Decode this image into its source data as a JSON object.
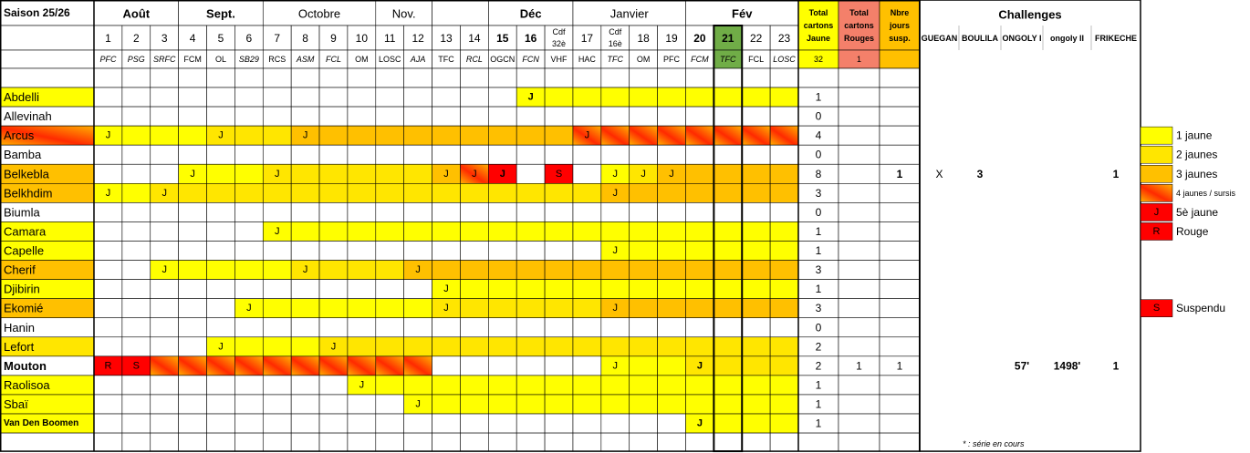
{
  "table": {
    "season": "Saison 25/26",
    "months": [
      {
        "label": "Août",
        "bold": true
      },
      {
        "label": "Sept.",
        "bold": true
      },
      {
        "label": "Octobre"
      },
      {
        "label": "Nov."
      },
      {
        "label": "Déc",
        "bold": true
      },
      {
        "label": "Janvier"
      },
      {
        "label": "Fév",
        "bold": true
      }
    ],
    "columns": [
      {
        "label": [
          "1"
        ],
        "opponent": "PFC",
        "color": "#00b050",
        "italic": true
      },
      {
        "label": [
          "2"
        ],
        "opponent": "PSG",
        "color": "#ff0000",
        "italic": true
      },
      {
        "label": [
          "3"
        ],
        "opponent": "SRFC",
        "color": "#000000",
        "italic": true
      },
      {
        "label": [
          "4"
        ],
        "opponent": "FCM",
        "color": "#000000"
      },
      {
        "label": [
          "5"
        ],
        "opponent": "OL",
        "color": "#ff0000"
      },
      {
        "label": [
          "6"
        ],
        "opponent": "SB29",
        "color": "#ff0000",
        "italic": true
      },
      {
        "label": [
          "7"
        ],
        "opponent": "RCS",
        "color": "#ff0000"
      },
      {
        "label": [
          "8"
        ],
        "opponent": "ASM",
        "color": "#000000",
        "italic": true
      },
      {
        "label": [
          "9"
        ],
        "opponent": "FCL",
        "color": "#00b050",
        "italic": true
      },
      {
        "label": [
          "10"
        ],
        "opponent": "OM",
        "color": "#000000"
      },
      {
        "label": [
          "11"
        ],
        "opponent": "LOSC",
        "color": "#ff0000"
      },
      {
        "label": [
          "12"
        ],
        "opponent": "AJA",
        "color": "#00b050",
        "italic": true
      },
      {
        "label": [
          "13"
        ],
        "opponent": "TFC",
        "color": "#00b050"
      },
      {
        "label": [
          "14"
        ],
        "opponent": "RCL",
        "color": "#ff0000",
        "italic": true
      },
      {
        "label": [
          "15"
        ],
        "opponent": "OGCN",
        "color": "#00b050",
        "bold": true
      },
      {
        "label": [
          "16"
        ],
        "opponent": "FCN",
        "color": "#00b050",
        "italic": true,
        "bold": true
      },
      {
        "label": [
          "Cdf",
          "32è"
        ],
        "opponent": "VHF",
        "color": "#000000"
      },
      {
        "label": [
          "17"
        ],
        "opponent": "HAC",
        "color": "#ff0000"
      },
      {
        "label": [
          "Cdf",
          "16è"
        ],
        "opponent": "TFC",
        "color": "#000000",
        "italic": true
      },
      {
        "label": [
          "18"
        ],
        "opponent": "OM",
        "color": "#ff0000"
      },
      {
        "label": [
          "19"
        ],
        "opponent": "PFC",
        "color": "#000000"
      },
      {
        "label": [
          "20"
        ],
        "opponent": "FCM",
        "color": "#00b050",
        "italic": true,
        "bold": true
      },
      {
        "label": [
          "21"
        ],
        "opponent": "TFC",
        "color": "#000000",
        "italic": true,
        "bold": true,
        "highlight": "#70ad47"
      },
      {
        "label": [
          "22"
        ],
        "opponent": "FCL",
        "color": "#000000"
      },
      {
        "label": [
          "23"
        ],
        "opponent": "LOSC",
        "color": "#000000",
        "italic": true
      }
    ],
    "totals": [
      {
        "label": [
          "Total",
          "cartons",
          "Jaune"
        ],
        "color": "#ffff00",
        "sum": 32
      },
      {
        "label": [
          "Total",
          "cartons",
          "Rouges"
        ],
        "color": "#f4806a",
        "sum": 1
      },
      {
        "label": [
          "Nbre",
          "jours",
          "susp."
        ],
        "color": "#ffc000"
      }
    ],
    "challenges_title": "Challenges",
    "challenges": [
      "GUEGAN",
      "BOULILA",
      "ONGOLY I",
      "ongoly II",
      "FRIKECHE"
    ],
    "level_colors": {
      "1": "#ffff00",
      "2": "#ffe600",
      "3": "#ffc000",
      "4": [
        "#ffb000",
        "#ff2a00"
      ],
      "r": "#ff0000"
    },
    "players": [
      {
        "name": "Abdelli",
        "level": "1",
        "fill": "0000000000000001111111111",
        "cards": {
          "15": "J"
        },
        "yellow": 1
      },
      {
        "name": "Allevinah",
        "yellow": 0
      },
      {
        "name": "Arcus",
        "level": "4",
        "fill": "1111222333333333344444444",
        "cards": {
          "0": "J",
          "4": "J",
          "7": "J",
          "17": "J"
        },
        "yellow": 4
      },
      {
        "name": "Bamba",
        "yellow": 0
      },
      {
        "name": "Belkebla",
        "level": "3",
        "fill": "00011122222234r0r01233333",
        "cards": {
          "3": "J",
          "6": "J",
          "12": "J",
          "13": "J",
          "14": "J",
          "16": "S",
          "18": "J",
          "19": "J",
          "20": "J"
        },
        "yellow": 8,
        "susp": 1,
        "challenges": {
          "0": "X",
          "1": "3",
          "4": "1"
        }
      },
      {
        "name": "Belkhdim",
        "level": "3",
        "fill": "1122222222222222223333333",
        "cards": {
          "0": "J",
          "2": "J",
          "18": "J"
        },
        "yellow": 3
      },
      {
        "name": "Biumla",
        "yellow": 0
      },
      {
        "name": "Camara",
        "level": "1",
        "fill": "0000001111111111111111111",
        "cards": {
          "6": "J"
        },
        "yellow": 1
      },
      {
        "name": "Capelle",
        "level": "1",
        "fill": "0000000000000000001111111",
        "cards": {
          "18": "J"
        },
        "yellow": 1
      },
      {
        "name": "Cherif",
        "level": "3",
        "fill": "0011111222233333333333333",
        "cards": {
          "2": "J",
          "7": "J",
          "11": "J"
        },
        "yellow": 3
      },
      {
        "name": "Djibirin",
        "level": "1",
        "fill": "0000000000001111111111111",
        "cards": {
          "12": "J"
        },
        "yellow": 1
      },
      {
        "name": "Ekomié",
        "level": "3",
        "fill": "0000011111112222223333333",
        "cards": {
          "5": "J",
          "12": "J",
          "18": "J"
        },
        "yellow": 3
      },
      {
        "name": "Hanin",
        "yellow": 0
      },
      {
        "name": "Lefort",
        "level": "2",
        "fill": "0000111122222222222222222",
        "cards": {
          "4": "J",
          "8": "J"
        },
        "yellow": 2
      },
      {
        "name": "Mouton",
        "bold": true,
        "fill": "rr44444444440000001112222",
        "cards": {
          "0": "R",
          "1": "S",
          "18": "J",
          "21": "J"
        },
        "yellow": 2,
        "red": 1,
        "susp": 1,
        "challenges": {
          "2": "57'",
          "3": "1498'",
          "4": "1"
        }
      },
      {
        "name": "Raolisoa",
        "level": "1",
        "fill": "0000000001111111111111111",
        "cards": {
          "9": "J"
        },
        "yellow": 1
      },
      {
        "name": "Sbaï",
        "level": "1",
        "fill": "0000000000011111111111111",
        "cards": {
          "11": "J"
        },
        "yellow": 1
      },
      {
        "name": "Van Den Boomen",
        "level": "1",
        "bold": true,
        "fill": "0000000000000000000001111",
        "cards": {
          "21": "J"
        },
        "yellow": 1
      }
    ],
    "legend": [
      {
        "swatch": "1",
        "label": "1 jaune"
      },
      {
        "swatch": "2",
        "label": "2 jaunes"
      },
      {
        "swatch": "3",
        "label": "3 jaunes"
      },
      {
        "swatch": "4",
        "label": "4 jaunes / sursis"
      },
      {
        "swatch": "r",
        "mark": "J",
        "label": "5è jaune"
      },
      {
        "swatch": "r",
        "mark": "R",
        "label": "Rouge"
      },
      {
        "swatch": "r",
        "mark": "S",
        "label": "Suspendu"
      }
    ],
    "footnote": "* : série en cours"
  }
}
